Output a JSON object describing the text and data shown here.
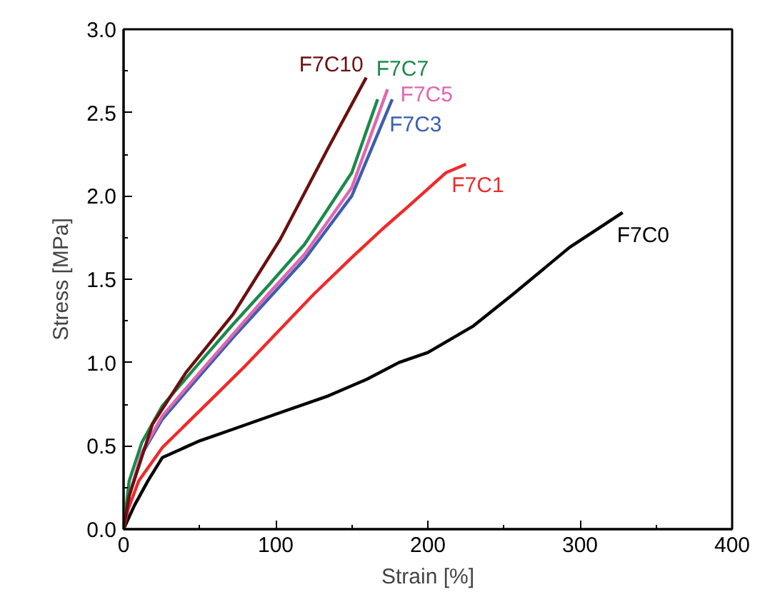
{
  "chart_data": {
    "type": "line",
    "xlabel": "Strain [%]",
    "ylabel": "Stress [MPa]",
    "xlim": [
      0,
      400
    ],
    "ylim": [
      0,
      3.0
    ],
    "xticks": [
      0,
      100,
      200,
      300,
      400
    ],
    "yticks": [
      {
        "value": 0,
        "label": "0.0"
      },
      {
        "value": 0.5,
        "label": "0.5"
      },
      {
        "value": 1,
        "label": "1.0"
      },
      {
        "value": 1.5,
        "label": "1.5"
      },
      {
        "value": 2,
        "label": "2.0"
      },
      {
        "value": 2.5,
        "label": "2.5"
      },
      {
        "value": 3,
        "label": "3.0"
      }
    ],
    "grid": false,
    "legend": false,
    "line_style": "solid",
    "marker": "none",
    "series": [
      {
        "name": "F7C0",
        "color": "#000000",
        "x": [
          0,
          7,
          16,
          25.5,
          50,
          72,
          100,
          134.6,
          160,
          181,
          200,
          230,
          256,
          293,
          328
        ],
        "values": [
          0,
          0.14,
          0.29,
          0.43,
          0.53,
          0.6,
          0.69,
          0.8,
          0.9,
          1.0,
          1.06,
          1.22,
          1.41,
          1.69,
          1.9
        ]
      },
      {
        "name": "F7C1",
        "color": "#ee2a2a",
        "x": [
          0,
          3,
          10,
          25.5,
          56.7,
          80,
          103,
          125,
          150,
          170,
          187.5,
          212,
          225
        ],
        "values": [
          0,
          0.12,
          0.29,
          0.49,
          0.77,
          0.98,
          1.2,
          1.41,
          1.63,
          1.8,
          1.94,
          2.14,
          2.19
        ]
      },
      {
        "name": "F7C3",
        "color": "#3a5fb0",
        "x": [
          0,
          3.7,
          12,
          25.5,
          50,
          72,
          95,
          119,
          150,
          176.6
        ],
        "values": [
          0,
          0.2,
          0.45,
          0.66,
          0.92,
          1.15,
          1.38,
          1.62,
          2.0,
          2.58
        ]
      },
      {
        "name": "F7C5",
        "color": "#e066b0",
        "x": [
          0,
          3.7,
          12,
          25.5,
          50,
          72,
          95,
          119,
          150,
          173.5
        ],
        "values": [
          0,
          0.2,
          0.46,
          0.68,
          0.94,
          1.17,
          1.41,
          1.65,
          2.05,
          2.64
        ]
      },
      {
        "name": "F7C7",
        "color": "#1a8a4a",
        "x": [
          0,
          3.7,
          12,
          25.5,
          50,
          72,
          95,
          119,
          150,
          167
        ],
        "values": [
          0,
          0.29,
          0.52,
          0.74,
          1.0,
          1.23,
          1.46,
          1.71,
          2.14,
          2.58
        ]
      },
      {
        "name": "F7C10",
        "color": "#6b0f0f",
        "x": [
          0,
          3.7,
          19,
          41,
          72,
          103,
          134.6,
          159.5
        ],
        "values": [
          0,
          0.2,
          0.63,
          0.94,
          1.29,
          1.74,
          2.29,
          2.71
        ]
      }
    ]
  }
}
